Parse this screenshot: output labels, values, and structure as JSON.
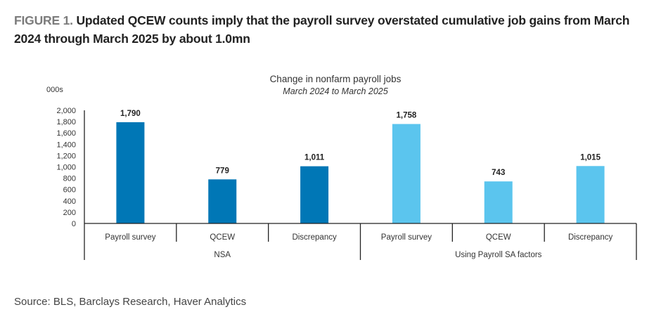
{
  "figure": {
    "label": "FIGURE 1.",
    "title": "Updated QCEW counts imply that the payroll survey overstated cumulative job gains from March 2024 through March 2025 by about 1.0mn",
    "source": "Source: BLS, Barclays Research, Haver Analytics"
  },
  "chart_data": {
    "type": "bar",
    "title": "Change in nonfarm payroll jobs",
    "subtitle": "March 2024 to March 2025",
    "ylabel": "000s",
    "xlabel": "",
    "ylim": [
      0,
      2000
    ],
    "yticks": [
      "0",
      "200",
      "400",
      "600",
      "800",
      "1,000",
      "1,200",
      "1,400",
      "1,600",
      "1,800",
      "2,000"
    ],
    "ytick_values": [
      0,
      200,
      400,
      600,
      800,
      1000,
      1200,
      1400,
      1600,
      1800,
      2000
    ],
    "grid": false,
    "categories": [
      "Payroll survey",
      "QCEW",
      "Discrepancy",
      "Payroll survey",
      "QCEW",
      "Discrepancy"
    ],
    "groups": [
      {
        "name": "NSA",
        "span": 3
      },
      {
        "name": "Using Payroll SA factors",
        "span": 3
      }
    ],
    "values": [
      1790,
      779,
      1011,
      1758,
      743,
      1015
    ],
    "value_labels": [
      "1,790",
      "779",
      "1,011",
      "1,758",
      "743",
      "1,015"
    ],
    "bar_colors": [
      "#0077b6",
      "#0077b6",
      "#0077b6",
      "#5bc5ee",
      "#5bc5ee",
      "#5bc5ee"
    ]
  }
}
